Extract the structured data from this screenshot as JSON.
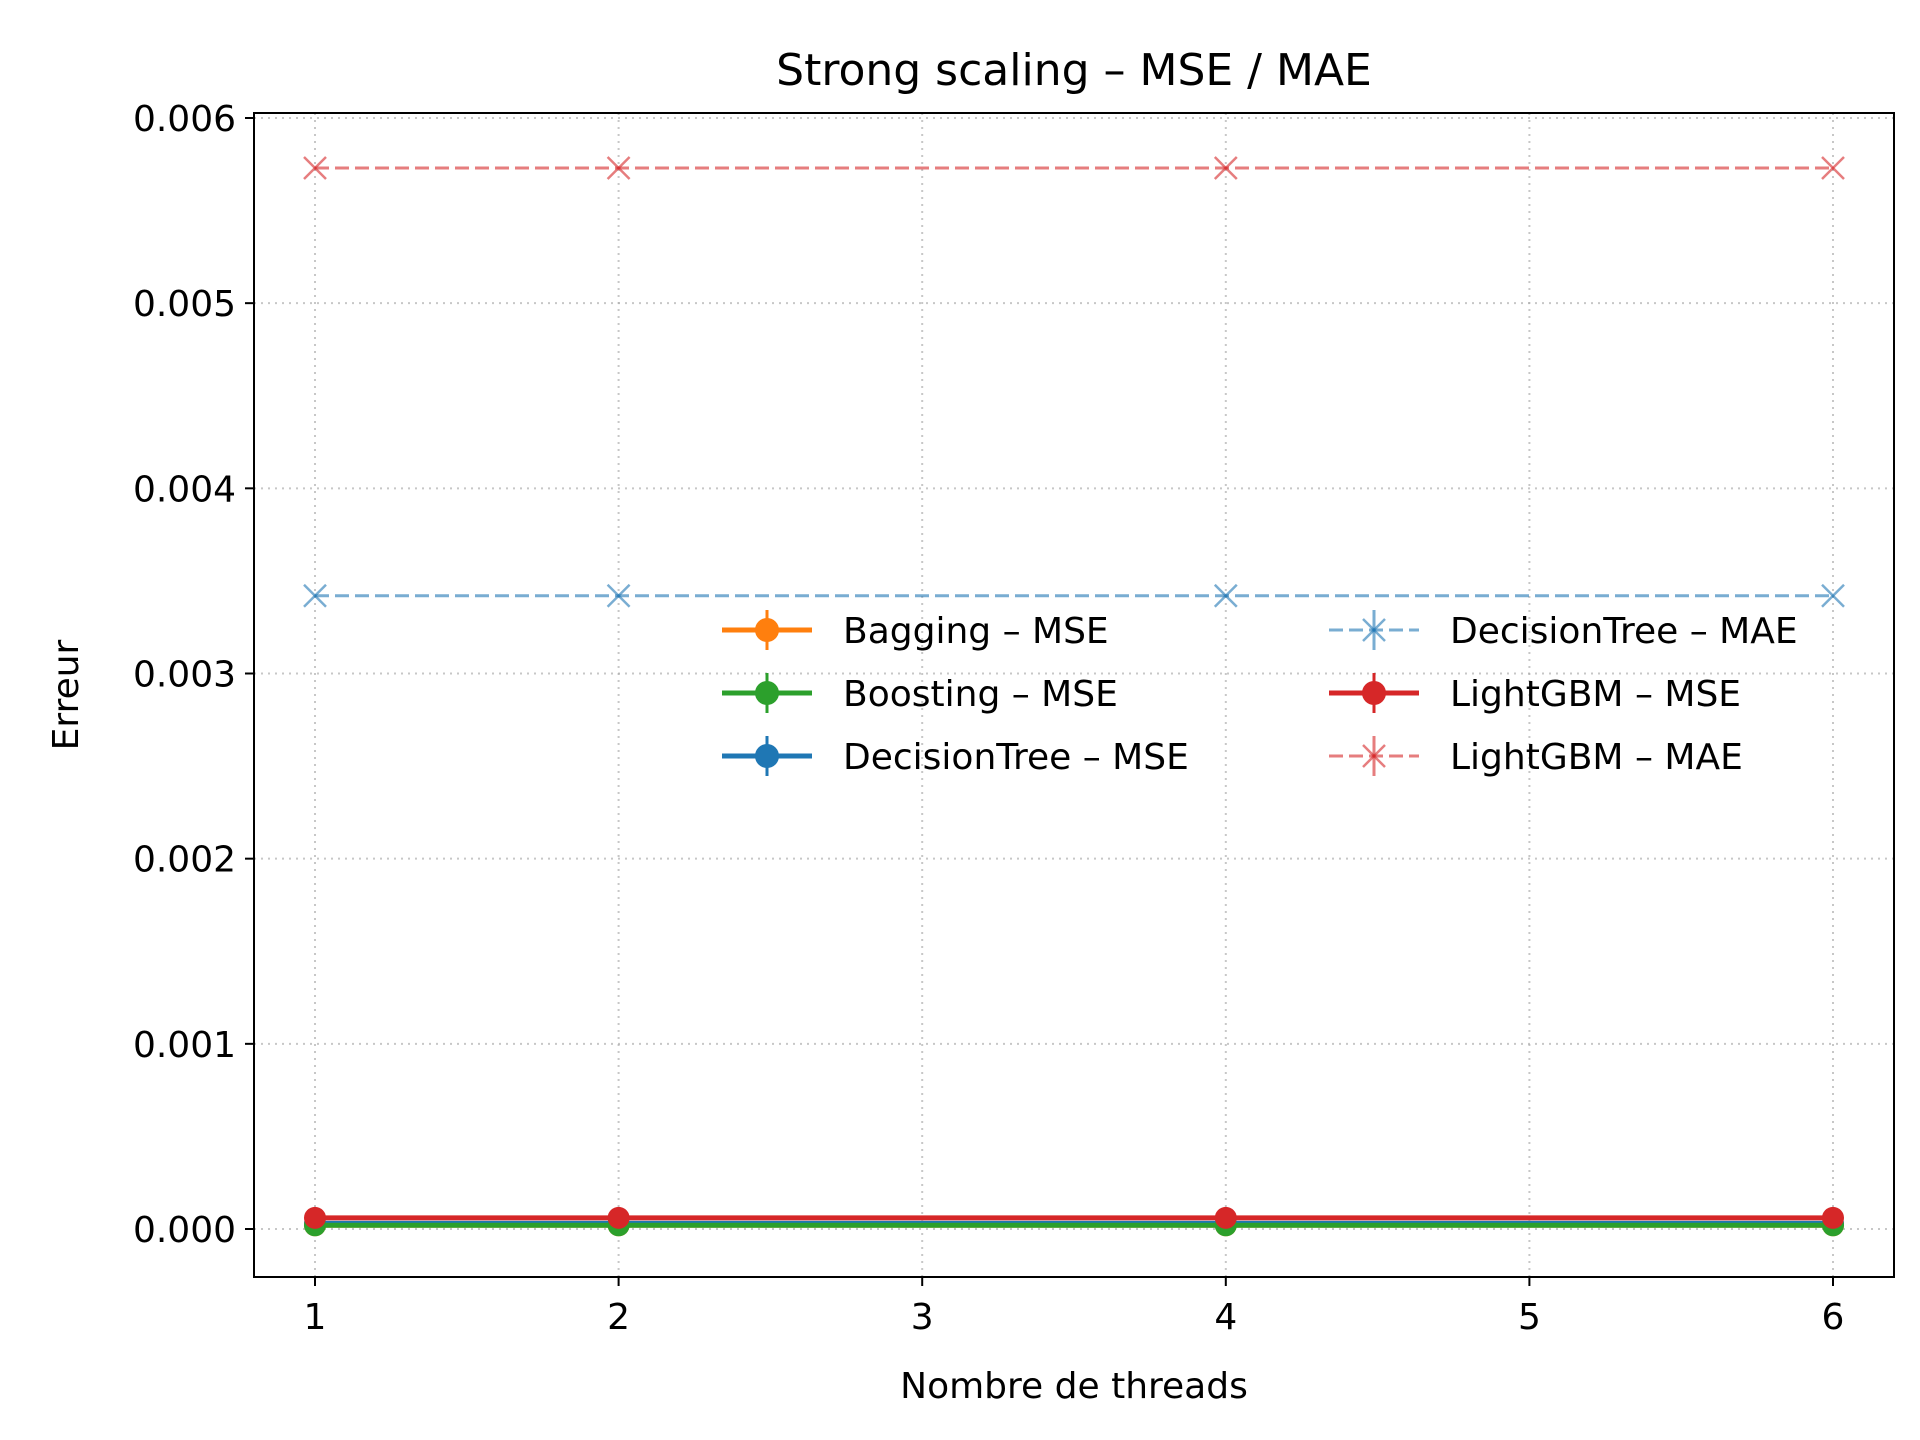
{
  "chart_data": {
    "type": "line",
    "title": "Strong scaling – MSE / MAE",
    "xlabel": "Nombre de threads",
    "ylabel": "Erreur",
    "x": [
      1,
      2,
      4,
      6
    ],
    "xticks": [
      1,
      2,
      3,
      4,
      5,
      6
    ],
    "xlim": [
      0.8,
      6.2
    ],
    "yticks": [
      0.0,
      0.001,
      0.002,
      0.003,
      0.004,
      0.005,
      0.006
    ],
    "ytick_labels": [
      "0.000",
      "0.001",
      "0.002",
      "0.003",
      "0.004",
      "0.005",
      "0.006"
    ],
    "ylim": [
      -0.00026,
      0.006
    ],
    "grid": true,
    "legend_position": "center-right",
    "legend_columns": 2,
    "series": [
      {
        "name": "Bagging – MSE",
        "values": [
          2e-05,
          2e-05,
          2e-05,
          2e-05
        ],
        "color": "#ff7f0e",
        "linestyle": "solid",
        "marker": "circle"
      },
      {
        "name": "Boosting – MSE",
        "values": [
          2e-05,
          2e-05,
          2e-05,
          2e-05
        ],
        "color": "#2ca02c",
        "linestyle": "solid",
        "marker": "circle"
      },
      {
        "name": "DecisionTree – MSE",
        "values": [
          3e-05,
          3e-05,
          3e-05,
          3e-05
        ],
        "color": "#1f77b4",
        "linestyle": "solid",
        "marker": "circle"
      },
      {
        "name": "DecisionTree – MAE",
        "values": [
          0.00342,
          0.00342,
          0.00342,
          0.00342
        ],
        "color": "#1f77b4",
        "linestyle": "dashed",
        "marker": "x",
        "alpha": 0.6
      },
      {
        "name": "LightGBM – MSE",
        "values": [
          6e-05,
          6e-05,
          6e-05,
          6e-05
        ],
        "color": "#d62728",
        "linestyle": "solid",
        "marker": "circle"
      },
      {
        "name": "LightGBM – MAE",
        "values": [
          0.00573,
          0.00573,
          0.00573,
          0.00573
        ],
        "color": "#d62728",
        "linestyle": "dashed",
        "marker": "x",
        "alpha": 0.6
      }
    ],
    "legend_order": [
      0,
      1,
      2,
      3,
      4,
      5
    ]
  }
}
